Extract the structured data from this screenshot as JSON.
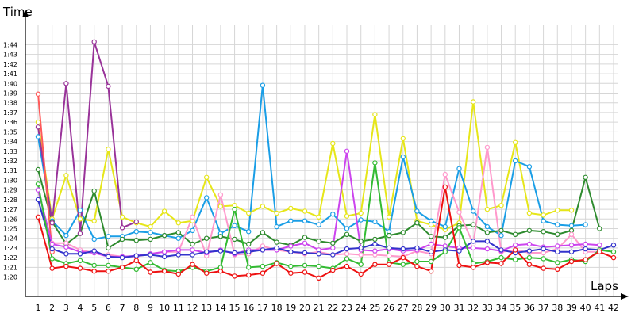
{
  "chart_data": {
    "type": "line",
    "ylabel": "Time",
    "xlabel": "Laps",
    "grid": true,
    "legend": "none",
    "y_unit": "minutes:seconds",
    "x": [
      1,
      2,
      3,
      4,
      5,
      6,
      7,
      8,
      9,
      10,
      11,
      12,
      13,
      14,
      15,
      16,
      17,
      18,
      19,
      20,
      21,
      22,
      23,
      24,
      25,
      26,
      27,
      28,
      29,
      30,
      31,
      32,
      33,
      34,
      35,
      36,
      37,
      38,
      39,
      40,
      41,
      42
    ],
    "xlim": [
      1,
      42
    ],
    "ylim": [
      "1:18",
      "1:46"
    ],
    "y_ticks": [
      "1:20",
      "1:21",
      "1:22",
      "1:23",
      "1:24",
      "1:25",
      "1:26",
      "1:27",
      "1:28",
      "1:29",
      "1:30",
      "1:31",
      "1:32",
      "1:33",
      "1:34",
      "1:35",
      "1:36",
      "1:37",
      "1:38",
      "1:39",
      "1:40",
      "1:41",
      "1:42",
      "1:43",
      "1:44"
    ],
    "series": [
      {
        "color": "#e6e619",
        "values": [
          "1:36",
          "1:26",
          "1:30.5",
          "1:26",
          "1:25.8",
          "1:33.2",
          "1:26.2",
          "1:25.6",
          "1:25.2",
          "1:26.8",
          "1:25.6",
          "1:25.8",
          "1:30.3",
          "1:27.3",
          "1:27.4",
          "1:26.6",
          "1:27.3",
          "1:26.6",
          "1:27.1",
          "1:26.8",
          "1:26.2",
          "1:33.8",
          "1:26.3",
          "1:26.6",
          "1:36.8",
          "1:26.2",
          "1:34.3",
          "1:25.8",
          "1:25.4",
          "1:24.9",
          "1:25.6",
          "1:38.1",
          "1:27.0",
          "1:27.4",
          "1:33.9",
          "1:26.6",
          "1:26.4",
          "1:26.9",
          "1:26.9",
          null,
          null,
          null
        ]
      },
      {
        "color": "#1a9ee6",
        "values": [
          "1:34.5",
          "1:25.8",
          "1:24.3",
          "1:26.9",
          "1:23.9",
          "1:24.2",
          "1:24.2",
          "1:24.7",
          "1:24.6",
          "1:24.3",
          "1:24.0",
          "1:24.8",
          "1:28.2",
          "1:24.5",
          "1:25.3",
          "1:24.7",
          "1:39.8",
          "1:25.2",
          "1:25.8",
          "1:25.8",
          "1:25.4",
          "1:26.5",
          "1:25.0",
          "1:25.9",
          "1:25.7",
          "1:24.7",
          "1:32.4",
          "1:26.8",
          "1:25.8",
          "1:25.2",
          "1:31.2",
          "1:26.8",
          "1:25.2",
          "1:24.3",
          "1:32.0",
          "1:31.4",
          "1:25.8",
          "1:25.4",
          "1:25.3",
          "1:25.4",
          null,
          null
        ]
      },
      {
        "color": "#2e8b2e",
        "values": [
          "1:31.1",
          "1:25.7",
          "1:23.4",
          "1:24.5",
          "1:28.9",
          "1:23.0",
          "1:23.9",
          "1:23.8",
          "1:23.9",
          "1:24.3",
          "1:24.6",
          "1:23.4",
          "1:24.0",
          "1:24.2",
          "1:23.9",
          "1:23.4",
          "1:24.6",
          "1:23.6",
          "1:23.3",
          "1:24.1",
          "1:23.7",
          "1:23.5",
          "1:24.4",
          "1:23.7",
          "1:23.9",
          "1:24.3",
          "1:24.6",
          "1:25.6",
          "1:24.2",
          "1:24.1",
          "1:25.3",
          "1:25.4",
          "1:24.6",
          "1:24.8",
          "1:24.4",
          "1:24.8",
          "1:24.7",
          "1:24.4",
          "1:24.8",
          "1:30.3",
          "1:25.0",
          null
        ]
      },
      {
        "color": "#993399",
        "values": [
          "1:35.5",
          "1:25.6",
          "1:40.0",
          "1:24.5",
          "1:44.3",
          "1:39.7",
          "1:25.1",
          "1:25.7",
          null,
          null,
          null,
          null,
          null,
          null,
          null,
          null,
          null,
          null,
          null,
          null,
          null,
          null,
          null,
          null,
          null,
          null,
          null,
          null,
          null,
          null,
          null,
          null,
          null,
          null,
          null,
          null,
          null,
          null,
          null,
          null,
          null,
          null
        ]
      },
      {
        "color": "#ff5a5a",
        "values": [
          "1:38.9",
          "1:22.6",
          null,
          null,
          null,
          null,
          null,
          null,
          null,
          null,
          null,
          null,
          null,
          null,
          null,
          null,
          null,
          null,
          null,
          null,
          null,
          null,
          null,
          null,
          null,
          null,
          null,
          null,
          null,
          null,
          null,
          null,
          null,
          null,
          null,
          null,
          null,
          null,
          null,
          null,
          null,
          null
        ]
      },
      {
        "color": "#ff99cc",
        "values": [
          null,
          "1:23.5",
          "1:23.5",
          "1:22.8",
          "1:22.5",
          "1:22.3",
          "1:22.1",
          "1:22.1",
          "1:22.4",
          "1:22.6",
          "1:22.6",
          "1:26.2",
          "1:22.2",
          "1:28.5",
          "1:22.3",
          "1:22.4",
          "1:23.2",
          "1:22.8",
          "1:22.6",
          "1:22.4",
          "1:22.6",
          "1:22.3",
          "1:22.4",
          "1:22.3",
          "1:22.3",
          "1:22.2",
          "1:22.1",
          "1:22.7",
          "1:22.4",
          "1:30.6",
          "1:26.7",
          "1:23.4",
          "1:33.4",
          "1:22.6",
          "1:22.8",
          "1:22.5",
          "1:22.5",
          "1:22.9",
          "1:24.4",
          "1:22.6",
          "1:22.6",
          null
        ]
      },
      {
        "color": "#cc44ee",
        "values": [
          "1:29",
          "1:23.4",
          "1:23.1",
          "1:22.6",
          "1:22.5",
          "1:22.1",
          "1:22.1",
          "1:22.2",
          "1:22.4",
          "1:22.6",
          "1:22.8",
          "1:22.8",
          "1:22.5",
          "1:22.8",
          "1:22.4",
          "1:22.8",
          "1:22.8",
          "1:22.8",
          "1:23.2",
          "1:23.5",
          "1:22.8",
          "1:23.0",
          "1:33.0",
          "1:22.8",
          "1:22.7",
          "1:22.9",
          "1:22.7",
          "1:22.8",
          "1:23.4",
          "1:23.2",
          "1:23.0",
          "1:23.0",
          "1:22.9",
          "1:22.7",
          "1:23.3",
          "1:23.4",
          "1:23.1",
          "1:23.2",
          "1:23.3",
          "1:23.4",
          "1:23.3",
          null
        ]
      },
      {
        "color": "#3333cc",
        "values": [
          "1:28",
          "1:22.9",
          "1:22.4",
          "1:22.4",
          "1:22.7",
          "1:22.1",
          "1:22.0",
          "1:22.2",
          "1:22.3",
          "1:22.1",
          "1:22.3",
          "1:22.3",
          "1:22.6",
          "1:22.7",
          "1:22.5",
          "1:22.6",
          "1:22.8",
          "1:23.0",
          "1:22.6",
          "1:22.5",
          "1:22.4",
          "1:22.3",
          "1:22.9",
          "1:23.0",
          "1:23.4",
          "1:23.0",
          "1:22.9",
          "1:23.0",
          "1:22.6",
          "1:22.8",
          "1:22.7",
          "1:23.7",
          "1:23.7",
          "1:22.8",
          "1:22.5",
          "1:22.7",
          "1:22.9",
          "1:22.6",
          "1:22.6",
          "1:22.9",
          "1:22.8",
          "1:23.3"
        ]
      },
      {
        "color": "#33bb33",
        "values": [
          "1:29.6",
          "1:21.9",
          "1:21.4",
          "1:21.7",
          "1:21.2",
          "1:21.2",
          "1:21.0",
          "1:20.8",
          "1:21.5",
          "1:20.7",
          "1:20.6",
          "1:21.0",
          "1:20.6",
          "1:21.0",
          "1:27.0",
          "1:21.0",
          "1:21.1",
          "1:21.5",
          "1:21.1",
          "1:21.2",
          "1:21.1",
          "1:20.9",
          "1:21.9",
          "1:21.3",
          "1:31.8",
          "1:21.5",
          "1:21.3",
          "1:21.6",
          "1:21.6",
          "1:22.6",
          "1:25.1",
          "1:21.4",
          "1:21.6",
          "1:22.0",
          "1:21.8",
          "1:22.0",
          "1:21.9",
          "1:21.5",
          "1:21.8",
          "1:21.6",
          "1:22.8",
          "1:22.6"
        ]
      },
      {
        "color": "#ee1111",
        "values": [
          "1:26.2",
          "1:20.9",
          "1:21.1",
          "1:20.9",
          "1:20.6",
          "1:20.6",
          "1:21.0",
          "1:21.7",
          "1:20.5",
          "1:20.6",
          "1:20.3",
          "1:21.3",
          "1:20.4",
          "1:20.6",
          "1:20.1",
          "1:20.2",
          "1:20.4",
          "1:21.4",
          "1:20.4",
          "1:20.5",
          "1:19.9",
          "1:20.7",
          "1:21.1",
          "1:20.3",
          "1:21.3",
          "1:21.3",
          "1:22.0",
          "1:21.1",
          "1:20.6",
          "1:29.3",
          "1:21.2",
          "1:21.0",
          "1:21.5",
          "1:21.4",
          "1:22.8",
          "1:21.3",
          "1:20.9",
          "1:20.8",
          "1:21.6",
          "1:21.8",
          "1:22.6",
          "1:22.0"
        ]
      }
    ]
  }
}
